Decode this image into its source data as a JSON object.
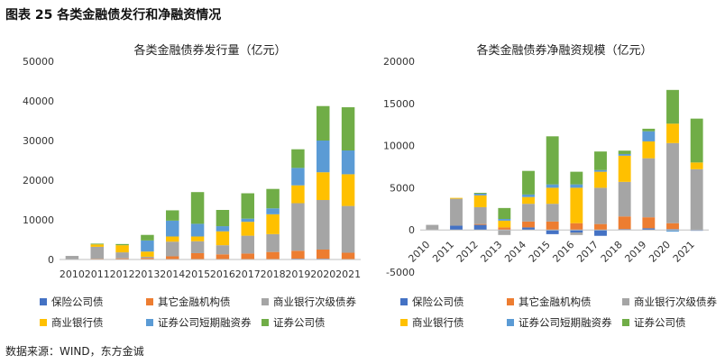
{
  "figure_title": "图表 25  各类金融债发行和净融资情况",
  "source": "数据来源：WIND，东方金诚",
  "chart_data": [
    {
      "type": "bar",
      "stacked": true,
      "title": "各类金融债券发行量（亿元）",
      "categories": [
        "2010",
        "2011",
        "2012",
        "2013",
        "2014",
        "2015",
        "2016",
        "2017",
        "2018",
        "2019",
        "2020",
        "2021"
      ],
      "ylim": [
        0,
        50000
      ],
      "yticks": [
        0,
        10000,
        20000,
        30000,
        40000,
        50000
      ],
      "grid": false,
      "legend_position": "bottom",
      "series": [
        {
          "name": "保险公司债",
          "color": "#4472C4",
          "values": [
            0,
            100,
            100,
            100,
            100,
            100,
            100,
            100,
            100,
            200,
            200,
            100
          ]
        },
        {
          "name": "其它金融机构债",
          "color": "#ED7D31",
          "values": [
            0,
            100,
            200,
            300,
            700,
            1500,
            1200,
            1400,
            1800,
            2000,
            2300,
            1600
          ]
        },
        {
          "name": "商业银行次级债券",
          "color": "#A5A5A5",
          "values": [
            900,
            3000,
            1500,
            300,
            3700,
            3000,
            2300,
            4500,
            4500,
            12000,
            12500,
            11800
          ]
        },
        {
          "name": "商业银行债",
          "color": "#FFC000",
          "values": [
            0,
            600,
            1800,
            1300,
            1300,
            1200,
            3500,
            3500,
            5000,
            4500,
            7000,
            8000
          ]
        },
        {
          "name": "证券公司短期融资券",
          "color": "#5B9BD5",
          "values": [
            0,
            0,
            0,
            2800,
            4000,
            3200,
            1300,
            800,
            1500,
            4400,
            8000,
            6000
          ]
        },
        {
          "name": "证券公司债",
          "color": "#70AD47",
          "values": [
            0,
            200,
            300,
            1400,
            2600,
            8000,
            4100,
            6400,
            4900,
            4700,
            8700,
            10900
          ]
        }
      ]
    },
    {
      "type": "bar",
      "stacked": true,
      "title": "各类金融债券净融资规模（亿元）",
      "categories": [
        "2010",
        "2011",
        "2012",
        "2013",
        "2014",
        "2015",
        "2016",
        "2017",
        "2018",
        "2019",
        "2020",
        "2021"
      ],
      "ylim": [
        -5000,
        20000
      ],
      "yticks": [
        -5000,
        0,
        5000,
        10000,
        15000,
        20000
      ],
      "grid": false,
      "legend_position": "bottom",
      "series": [
        {
          "name": "保险公司债",
          "color": "#4472C4",
          "values": [
            0,
            500,
            600,
            0,
            300,
            -500,
            -300,
            -700,
            100,
            200,
            100,
            -100
          ]
        },
        {
          "name": "其它金融机构债",
          "color": "#ED7D31",
          "values": [
            0,
            0,
            100,
            300,
            700,
            1000,
            800,
            700,
            1500,
            1300,
            700,
            0
          ]
        },
        {
          "name": "商业银行次级债券",
          "color": "#A5A5A5",
          "values": [
            600,
            3200,
            2000,
            -600,
            2100,
            2100,
            -300,
            4300,
            4100,
            7000,
            9500,
            7200
          ]
        },
        {
          "name": "商业银行债",
          "color": "#FFC000",
          "values": [
            0,
            100,
            1400,
            800,
            800,
            1900,
            4200,
            1900,
            3100,
            2000,
            2300,
            800
          ]
        },
        {
          "name": "证券公司短期融资券",
          "color": "#5B9BD5",
          "values": [
            0,
            0,
            200,
            200,
            300,
            400,
            400,
            200,
            200,
            1200,
            -200,
            0
          ]
        },
        {
          "name": "证券公司债",
          "color": "#70AD47",
          "values": [
            0,
            0,
            100,
            1300,
            2800,
            5700,
            1500,
            2200,
            400,
            300,
            4000,
            5200
          ]
        }
      ]
    }
  ]
}
